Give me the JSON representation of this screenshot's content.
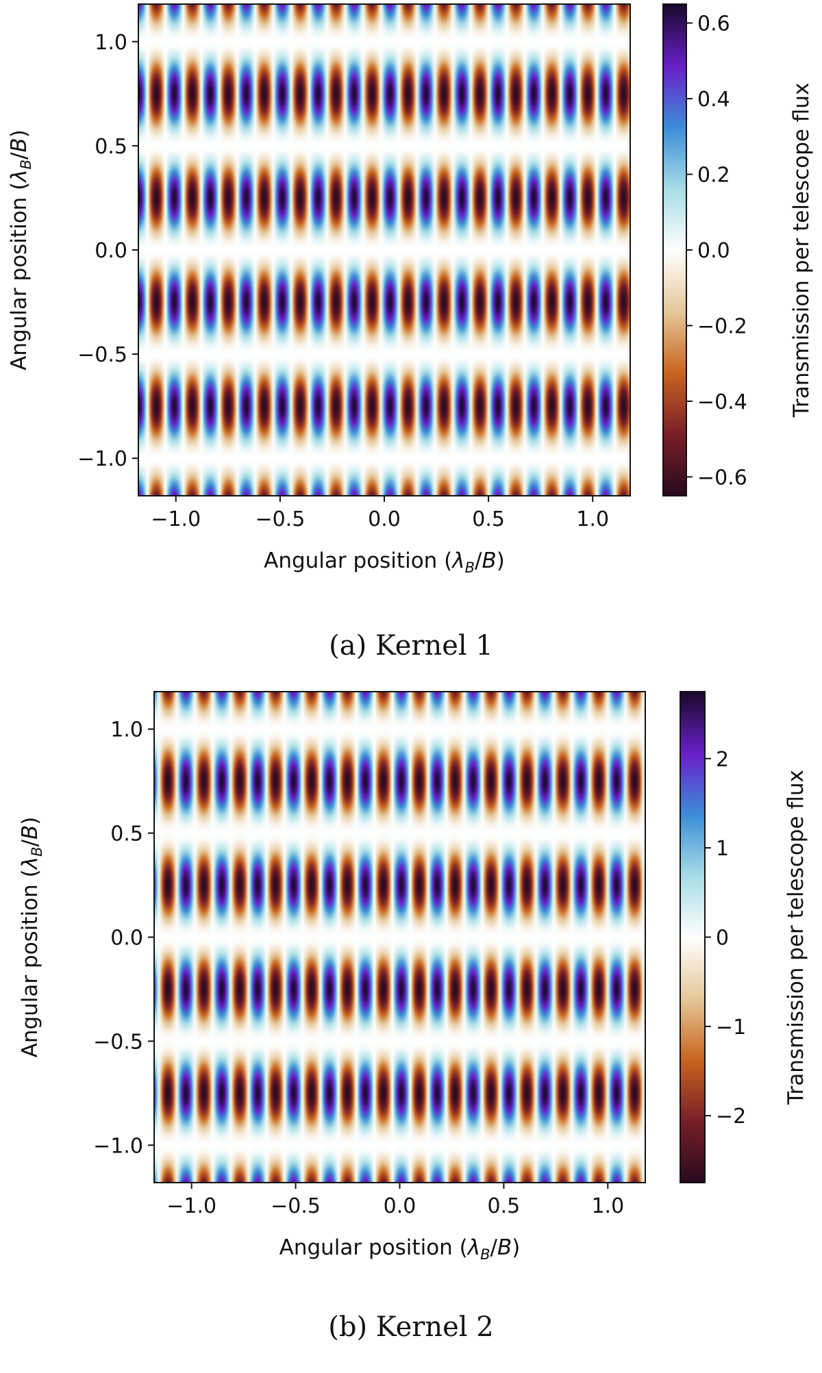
{
  "chart_data": [
    {
      "type": "heatmap",
      "caption": "(a) Kernel 1",
      "xlabel": "Angular position (λB/B)",
      "ylabel": "Angular position (λB/B)",
      "colorbar_label": "Transmission per telescope flux",
      "xlim": [
        -1.18,
        1.18
      ],
      "ylim": [
        -1.18,
        1.18
      ],
      "xticks": [
        -1.0,
        -0.5,
        0.0,
        0.5,
        1.0
      ],
      "xtick_labels": [
        "−1.0",
        "−0.5",
        "0.0",
        "0.5",
        "1.0"
      ],
      "yticks": [
        -1.0,
        -0.5,
        0.0,
        0.5,
        1.0
      ],
      "ytick_labels": [
        "−1.0",
        "−0.5",
        "0.0",
        "0.5",
        "1.0"
      ],
      "color_range": [
        -0.65,
        0.65
      ],
      "cbar_ticks": [
        -0.6,
        -0.4,
        -0.2,
        0.0,
        0.2,
        0.4,
        0.6
      ],
      "cbar_tick_labels": [
        "−0.6",
        "−0.4",
        "−0.2",
        "0.0",
        "0.2",
        "0.4",
        "0.6"
      ],
      "amplitude": 0.65,
      "x_period": 0.1725,
      "x_phase": -1.18,
      "y_frequency": 1.0,
      "colormap": [
        "#2a0a1f",
        "#7a1f28",
        "#c9651f",
        "#e6c89a",
        "#ffffff",
        "#a8dde6",
        "#3c8ed8",
        "#6a1fc8",
        "#1a0a2e"
      ]
    },
    {
      "type": "heatmap",
      "caption": "(b) Kernel 2",
      "xlabel": "Angular position (λB/B)",
      "ylabel": "Angular position (λB/B)",
      "colorbar_label": "Transmission per telescope flux",
      "xlim": [
        -1.18,
        1.18
      ],
      "ylim": [
        -1.18,
        1.18
      ],
      "xticks": [
        -1.0,
        -0.5,
        0.0,
        0.5,
        1.0
      ],
      "xtick_labels": [
        "−1.0",
        "−0.5",
        "0.0",
        "0.5",
        "1.0"
      ],
      "yticks": [
        -1.0,
        -0.5,
        0.0,
        0.5,
        1.0
      ],
      "ytick_labels": [
        "−1.0",
        "−0.5",
        "0.0",
        "0.5",
        "1.0"
      ],
      "color_range": [
        -2.75,
        2.75
      ],
      "cbar_ticks": [
        -2,
        -1,
        0,
        1,
        2
      ],
      "cbar_tick_labels": [
        "−2",
        "−1",
        "0",
        "1",
        "2"
      ],
      "amplitude": 2.75,
      "x_period": 0.1725,
      "x_phase": -1.2,
      "y_frequency": 1.0,
      "colormap": [
        "#2a0a1f",
        "#7a1f28",
        "#c9651f",
        "#e6c89a",
        "#ffffff",
        "#a8dde6",
        "#3c8ed8",
        "#6a1fc8",
        "#1a0a2e"
      ]
    }
  ]
}
